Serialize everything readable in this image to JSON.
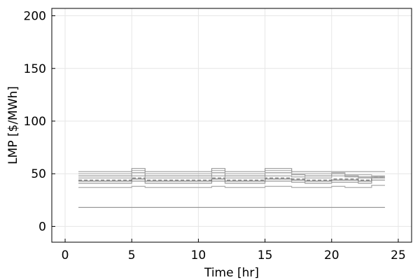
{
  "chart_data": {
    "type": "line",
    "title": "",
    "xlabel": "Time [hr]",
    "ylabel": "LMP [$/MWh]",
    "xlim": [
      -1,
      26
    ],
    "ylim": [
      -15,
      207
    ],
    "xticks": [
      0,
      5,
      10,
      15,
      20,
      25
    ],
    "yticks": [
      0,
      50,
      100,
      150,
      200
    ],
    "grid": true,
    "legend": "none",
    "x": [
      1,
      2,
      3,
      4,
      5,
      6,
      7,
      8,
      9,
      10,
      11,
      12,
      13,
      14,
      15,
      16,
      17,
      18,
      19,
      20,
      21,
      22,
      23,
      24
    ],
    "series": [
      {
        "color": "#999999",
        "dashed": false,
        "values": [
          18,
          18,
          18,
          18,
          18,
          18,
          18,
          18,
          18,
          18,
          18,
          18,
          18,
          18,
          18,
          18,
          18,
          18,
          18,
          18,
          18,
          18,
          18,
          18
        ]
      },
      {
        "color": "#aaaaaa",
        "dashed": false,
        "values": [
          37,
          37,
          37,
          37,
          38,
          37,
          37,
          37,
          37,
          37,
          38,
          37,
          37,
          37,
          38,
          38,
          37,
          37,
          37,
          38,
          37,
          37,
          39,
          39
        ]
      },
      {
        "color": "#9a9a9a",
        "dashed": false,
        "values": [
          41,
          41,
          41,
          41,
          43,
          41,
          41,
          41,
          41,
          41,
          43,
          41,
          41,
          41,
          43,
          43,
          42,
          41,
          41,
          42,
          42,
          41,
          44,
          44
        ]
      },
      {
        "color": "#808080",
        "dashed": false,
        "values": [
          43,
          43,
          43,
          43,
          45,
          43,
          43,
          43,
          43,
          43,
          45,
          43,
          43,
          43,
          45,
          45,
          44,
          43,
          43,
          44,
          44,
          43,
          46,
          46
        ]
      },
      {
        "color": "#777777",
        "dashed": true,
        "values": [
          44,
          44,
          44,
          44,
          46,
          44,
          44,
          44,
          44,
          44,
          46,
          44,
          44,
          44,
          46,
          46,
          45,
          44,
          44,
          45,
          45,
          44,
          47,
          47
        ]
      },
      {
        "color": "#aaaaaa",
        "dashed": false,
        "values": [
          46,
          46,
          46,
          46,
          48,
          46,
          46,
          46,
          46,
          46,
          48,
          46,
          46,
          46,
          48,
          48,
          47,
          46,
          46,
          48,
          47,
          46,
          46,
          46
        ]
      },
      {
        "color": "#999999",
        "dashed": false,
        "values": [
          48,
          48,
          48,
          48,
          51,
          48,
          48,
          48,
          48,
          48,
          51,
          48,
          48,
          48,
          51,
          51,
          49,
          48,
          48,
          50,
          48,
          47,
          47,
          47
        ]
      },
      {
        "color": "#aaaaaa",
        "dashed": false,
        "values": [
          50,
          50,
          50,
          50,
          53,
          50,
          50,
          50,
          50,
          50,
          53,
          50,
          50,
          50,
          53,
          53,
          50,
          50,
          50,
          51,
          49,
          49,
          48,
          48
        ]
      },
      {
        "color": "#9a9a9a",
        "dashed": false,
        "values": [
          52,
          52,
          52,
          52,
          55,
          52,
          52,
          52,
          52,
          52,
          55,
          52,
          52,
          52,
          55,
          55,
          52,
          52,
          52,
          52,
          52,
          52,
          52,
          52
        ]
      }
    ]
  }
}
